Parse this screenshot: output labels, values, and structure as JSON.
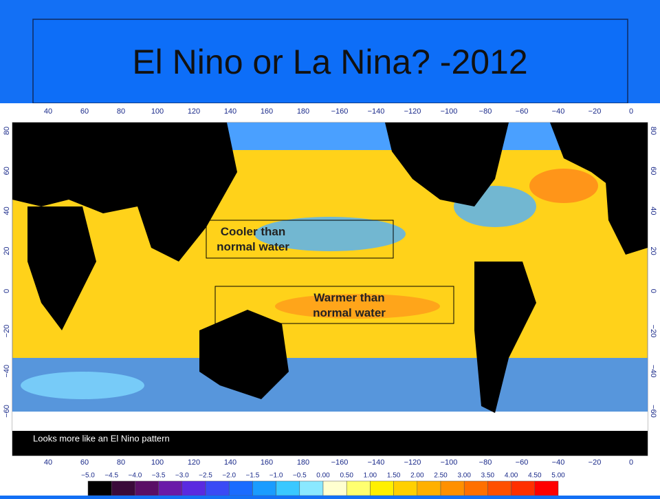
{
  "header": {
    "title": "El Nino or La Nina? -2012"
  },
  "map": {
    "longitude_labels": [
      "40",
      "60",
      "80",
      "100",
      "120",
      "140",
      "160",
      "180",
      "−160",
      "−140",
      "−120",
      "−100",
      "−80",
      "−60",
      "−40",
      "−20",
      "0"
    ],
    "latitude_labels": [
      "80",
      "60",
      "40",
      "20",
      "0",
      "−20",
      "−40",
      "−60"
    ],
    "annotations": [
      {
        "text": "Cooler than normal water"
      },
      {
        "text": "Warmer than normal water"
      }
    ],
    "note": "Looks more like an El Nino pattern"
  },
  "colorbar": {
    "labels": [
      "−5.0",
      "−4.5",
      "−4.0",
      "−3.5",
      "−3.0",
      "−2.5",
      "−2.0",
      "−1.5",
      "−1.0",
      "−0.5",
      "0.00",
      "0.50",
      "1.00",
      "1.50",
      "2.00",
      "2.50",
      "3.00",
      "3.50",
      "4.00",
      "4.50",
      "5.00"
    ]
  }
}
